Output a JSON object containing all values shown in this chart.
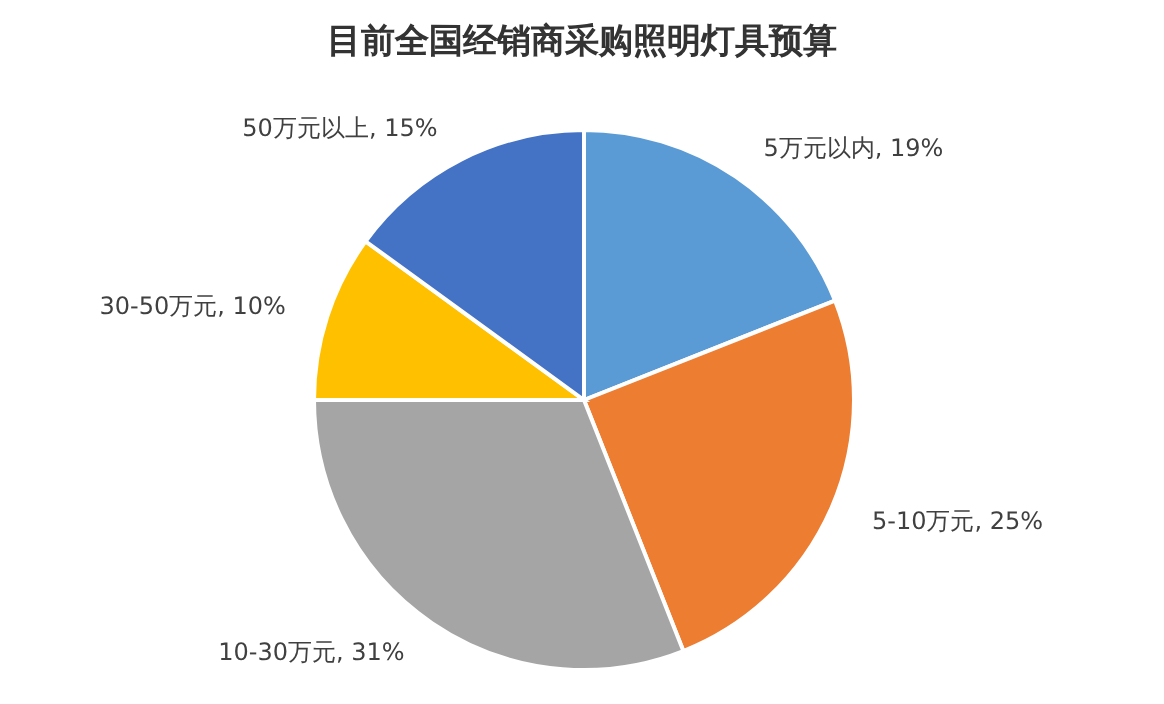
{
  "chart_data": {
    "type": "pie",
    "title": "目前全国经销商采购照明灯具预算",
    "categories": [
      "5万元以内",
      "5-10万元",
      "10-30万元",
      "30-50万元",
      "50万元以上"
    ],
    "values": [
      19,
      25,
      31,
      10,
      15
    ],
    "value_labels": [
      "19%",
      "25%",
      "31%",
      "10%",
      "15%"
    ],
    "colors": [
      "#5b9bd5",
      "#ed7d31",
      "#a5a5a5",
      "#ffc000",
      "#4472c4"
    ]
  }
}
